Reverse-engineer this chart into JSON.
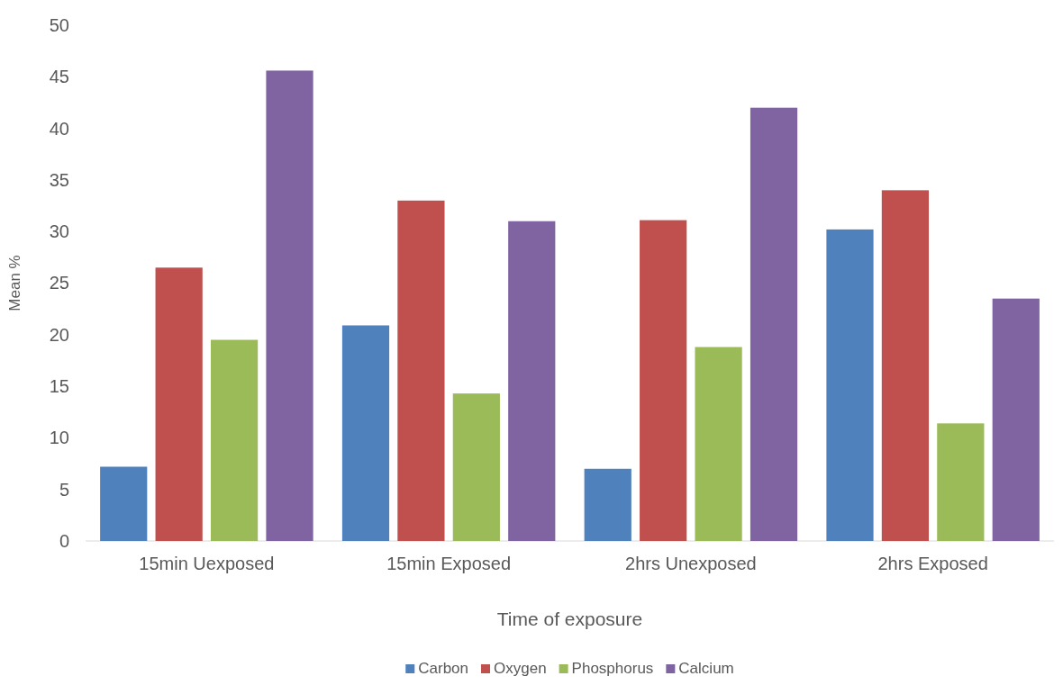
{
  "chart_data": {
    "type": "bar",
    "xlabel": "Time of exposure",
    "ylabel": "Mean %",
    "categories": [
      "15min Uexposed",
      "15min Exposed",
      "2hrs Unexposed",
      "2hrs Exposed"
    ],
    "series": [
      {
        "name": "Carbon",
        "color": "#4f81bd",
        "values": [
          7.2,
          20.9,
          7.0,
          30.2
        ]
      },
      {
        "name": "Oxygen",
        "color": "#c0504d",
        "values": [
          26.5,
          33.0,
          31.1,
          34.0
        ]
      },
      {
        "name": "Phosphorus",
        "color": "#9bbb59",
        "values": [
          19.5,
          14.3,
          18.8,
          11.4
        ]
      },
      {
        "name": "Calcium",
        "color": "#8064a2",
        "values": [
          45.6,
          31.0,
          42.0,
          23.5
        ]
      }
    ],
    "ylim": [
      0,
      50
    ],
    "yticks": [
      0,
      5,
      10,
      15,
      20,
      25,
      30,
      35,
      40,
      45,
      50
    ],
    "grid": false,
    "legend": "bottom"
  }
}
